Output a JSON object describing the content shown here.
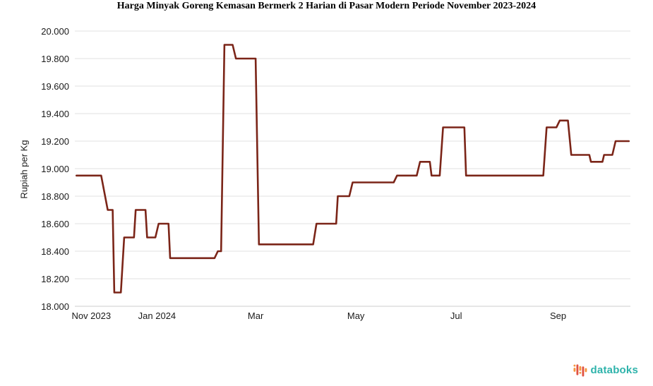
{
  "chart_data": {
    "type": "line",
    "variant": "step",
    "title": "Harga Minyak Goreng Kemasan Bermerk 2 Harian di Pasar Modern Periode November 2023-2024",
    "ylabel": "Rupiah per Kg",
    "xlabel": "",
    "ylim": [
      18000,
      20000
    ],
    "y_ticks": [
      18000,
      18200,
      18400,
      18600,
      18800,
      19000,
      19200,
      19400,
      19600,
      19800,
      20000
    ],
    "y_tick_labels": [
      "18.000",
      "18.200",
      "18.400",
      "18.600",
      "18.800",
      "19.000",
      "19.200",
      "19.400",
      "19.600",
      "19.800",
      "20.000"
    ],
    "grid": "horizontal",
    "legend": "none",
    "line_color": "#7b2518",
    "x_axis": {
      "unit": "days",
      "day_zero": "2023-11-01",
      "domain_days": [
        11,
        349
      ],
      "ticks": [
        {
          "label": "Nov 2023",
          "day": 21
        },
        {
          "label": "Jan 2024",
          "day": 61
        },
        {
          "label": "Mar",
          "day": 121
        },
        {
          "label": "May",
          "day": 182
        },
        {
          "label": "Jul",
          "day": 243
        },
        {
          "label": "Sep",
          "day": 305
        }
      ]
    },
    "segments": [
      {
        "start_day": 12,
        "end_day": 27,
        "value": 18950
      },
      {
        "start_day": 31,
        "end_day": 34,
        "value": 18700
      },
      {
        "start_day": 35,
        "end_day": 39,
        "value": 18100
      },
      {
        "start_day": 41,
        "end_day": 47,
        "value": 18500
      },
      {
        "start_day": 48,
        "end_day": 54,
        "value": 18700
      },
      {
        "start_day": 55,
        "end_day": 60,
        "value": 18500
      },
      {
        "start_day": 62,
        "end_day": 68,
        "value": 18600
      },
      {
        "start_day": 69,
        "end_day": 96,
        "value": 18350
      },
      {
        "start_day": 98,
        "end_day": 100,
        "value": 18400
      },
      {
        "start_day": 102,
        "end_day": 107,
        "value": 19900
      },
      {
        "start_day": 109,
        "end_day": 121,
        "value": 19800
      },
      {
        "start_day": 123,
        "end_day": 156,
        "value": 18450
      },
      {
        "start_day": 158,
        "end_day": 170,
        "value": 18600
      },
      {
        "start_day": 171,
        "end_day": 178,
        "value": 18800
      },
      {
        "start_day": 180,
        "end_day": 205,
        "value": 18900
      },
      {
        "start_day": 207,
        "end_day": 219,
        "value": 18950
      },
      {
        "start_day": 221,
        "end_day": 227,
        "value": 19050
      },
      {
        "start_day": 228,
        "end_day": 233,
        "value": 18950
      },
      {
        "start_day": 235,
        "end_day": 248,
        "value": 19300
      },
      {
        "start_day": 249,
        "end_day": 296,
        "value": 18950
      },
      {
        "start_day": 298,
        "end_day": 304,
        "value": 19300
      },
      {
        "start_day": 306,
        "end_day": 311,
        "value": 19350
      },
      {
        "start_day": 313,
        "end_day": 324,
        "value": 19100
      },
      {
        "start_day": 325,
        "end_day": 332,
        "value": 19050
      },
      {
        "start_day": 333,
        "end_day": 338,
        "value": 19100
      },
      {
        "start_day": 340,
        "end_day": 348,
        "value": 19200
      }
    ]
  },
  "branding": {
    "name": "databoks",
    "logo_icon": "pulse-bars-icon"
  },
  "colors": {
    "line": "#7b2518",
    "grid": "#e2e2e2",
    "axis_line": "#cccccc",
    "text": "#1a1a1a",
    "logo_text": "#2eb3ab",
    "logo_orange": "#f6953e",
    "logo_red": "#e05243"
  }
}
